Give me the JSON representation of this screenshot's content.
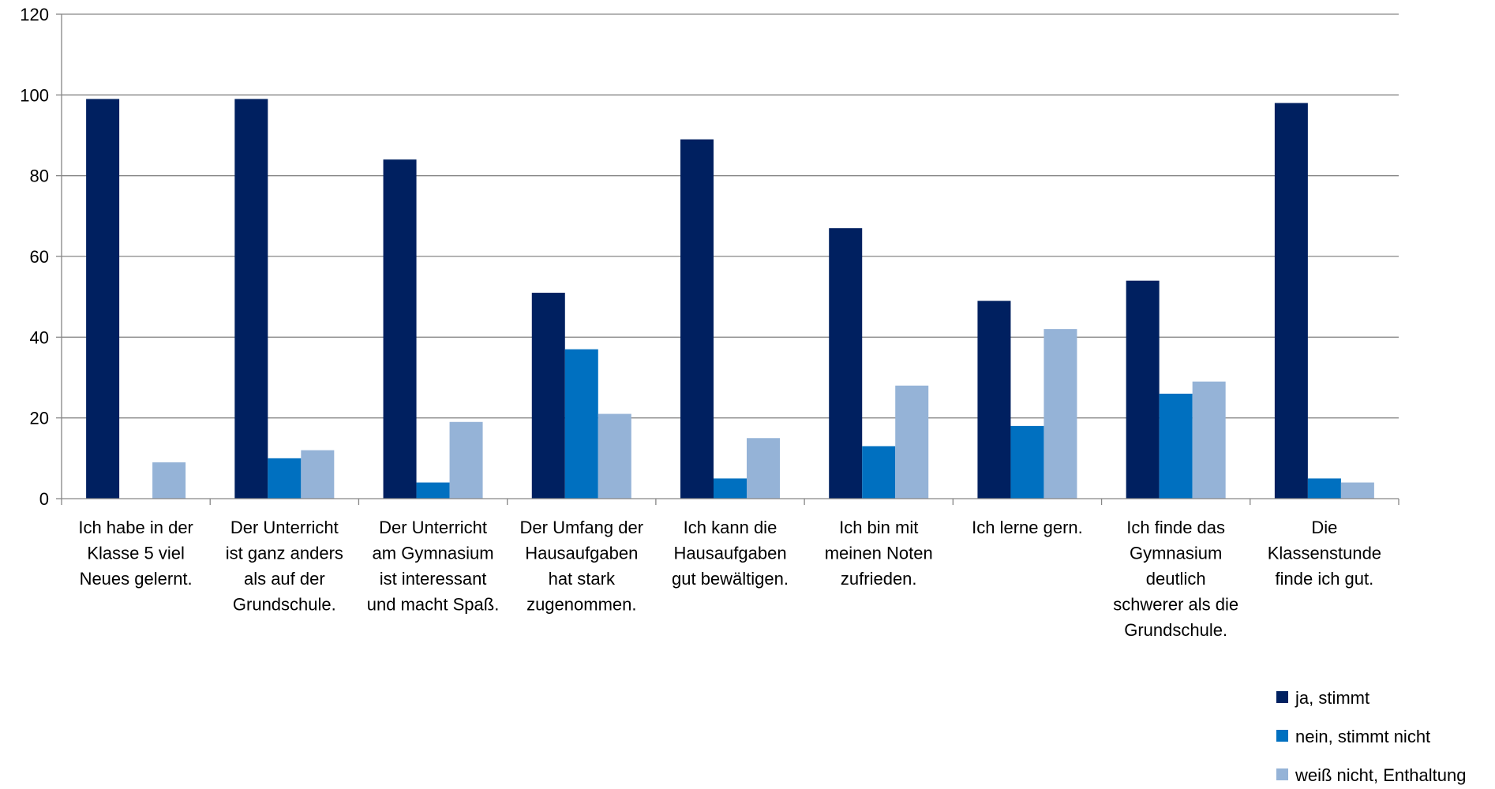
{
  "chart_data": {
    "type": "bar",
    "title": "",
    "xlabel": "",
    "ylabel": "",
    "ylim": [
      0,
      120
    ],
    "yticks": [
      0,
      20,
      40,
      60,
      80,
      100,
      120
    ],
    "grid": true,
    "legend_position": "bottom-right",
    "categories": [
      [
        "Ich habe in der",
        "Klasse 5 viel",
        "Neues gelernt."
      ],
      [
        "Der Unterricht",
        "ist ganz anders",
        "als auf der",
        "Grundschule."
      ],
      [
        "Der Unterricht",
        "am Gymnasium",
        "ist interessant",
        "und macht Spaß."
      ],
      [
        "Der Umfang der",
        "Hausaufgaben",
        "hat stark",
        "zugenommen."
      ],
      [
        "Ich kann die",
        "Hausaufgaben",
        "gut bewältigen."
      ],
      [
        "Ich bin mit",
        "meinen Noten",
        "zufrieden."
      ],
      [
        "Ich lerne gern."
      ],
      [
        "Ich finde das",
        "Gymnasium",
        "deutlich",
        "schwerer als die",
        "Grundschule."
      ],
      [
        "Die",
        "Klassenstunde",
        "finde ich gut."
      ]
    ],
    "series": [
      {
        "name": "ja, stimmt",
        "color": "#002060",
        "values": [
          99,
          99,
          84,
          51,
          89,
          67,
          49,
          54,
          98
        ]
      },
      {
        "name": "nein, stimmt nicht",
        "color": "#0070C0",
        "values": [
          0,
          10,
          4,
          37,
          5,
          13,
          18,
          26,
          5
        ]
      },
      {
        "name": "weiß nicht, Enthaltung",
        "color": "#95B3D7",
        "values": [
          9,
          12,
          19,
          21,
          15,
          28,
          42,
          29,
          4
        ]
      }
    ]
  },
  "colors": {
    "gridline": "#868686",
    "axis": "#868686",
    "background": "#ffffff"
  }
}
